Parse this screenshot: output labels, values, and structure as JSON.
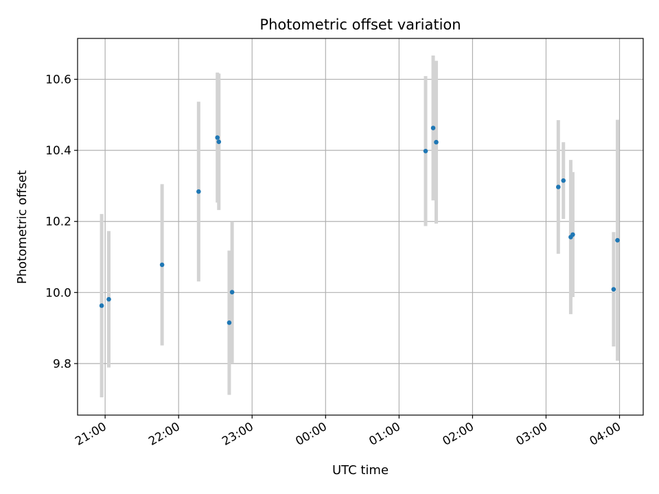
{
  "chart_data": {
    "type": "scatter",
    "title": "Photometric offset variation",
    "xlabel": "UTC time",
    "ylabel": "Photometric offset",
    "x_axis_kind": "datetime",
    "x_range": [
      "2024-01-01T20:37:30",
      "2024-01-02T04:19:20"
    ],
    "ylim": [
      9.655,
      10.715
    ],
    "x_ticks": [
      {
        "t": "2024-01-01T21:00:00",
        "label": "21:00"
      },
      {
        "t": "2024-01-01T22:00:00",
        "label": "22:00"
      },
      {
        "t": "2024-01-01T23:00:00",
        "label": "23:00"
      },
      {
        "t": "2024-01-02T00:00:00",
        "label": "00:00"
      },
      {
        "t": "2024-01-02T01:00:00",
        "label": "01:00"
      },
      {
        "t": "2024-01-02T02:00:00",
        "label": "02:00"
      },
      {
        "t": "2024-01-02T03:00:00",
        "label": "03:00"
      },
      {
        "t": "2024-01-02T04:00:00",
        "label": "04:00"
      }
    ],
    "y_ticks": [
      {
        "v": 9.8,
        "label": "9.8"
      },
      {
        "v": 10.0,
        "label": "10.0"
      },
      {
        "v": 10.2,
        "label": "10.2"
      },
      {
        "v": 10.4,
        "label": "10.4"
      },
      {
        "v": 10.6,
        "label": "10.6"
      }
    ],
    "grid": true,
    "marker_color": "#1f77b4",
    "errorbar_color": "#d3d3d3",
    "points": [
      {
        "t": "2024-01-01T20:57:10",
        "y": 9.963,
        "err": 0.258
      },
      {
        "t": "2024-01-01T21:03:00",
        "y": 9.981,
        "err": 0.192
      },
      {
        "t": "2024-01-01T21:46:30",
        "y": 10.078,
        "err": 0.227
      },
      {
        "t": "2024-01-01T22:16:20",
        "y": 10.284,
        "err": 0.253
      },
      {
        "t": "2024-01-01T22:31:40",
        "y": 10.436,
        "err": 0.183
      },
      {
        "t": "2024-01-01T22:32:50",
        "y": 10.424,
        "err": 0.192
      },
      {
        "t": "2024-01-01T22:41:20",
        "y": 9.915,
        "err": 0.203
      },
      {
        "t": "2024-01-01T22:43:40",
        "y": 10.001,
        "err": 0.199
      },
      {
        "t": "2024-01-02T01:21:40",
        "y": 10.398,
        "err": 0.211
      },
      {
        "t": "2024-01-02T01:27:50",
        "y": 10.463,
        "err": 0.204
      },
      {
        "t": "2024-01-02T01:30:20",
        "y": 10.423,
        "err": 0.229
      },
      {
        "t": "2024-01-02T03:10:00",
        "y": 10.297,
        "err": 0.188
      },
      {
        "t": "2024-01-02T03:14:10",
        "y": 10.315,
        "err": 0.108
      },
      {
        "t": "2024-01-02T03:20:10",
        "y": 10.156,
        "err": 0.217
      },
      {
        "t": "2024-01-02T03:21:50",
        "y": 10.163,
        "err": 0.176
      },
      {
        "t": "2024-01-02T03:55:10",
        "y": 10.009,
        "err": 0.161
      },
      {
        "t": "2024-01-02T03:58:20",
        "y": 10.147,
        "err": 0.339
      }
    ]
  }
}
